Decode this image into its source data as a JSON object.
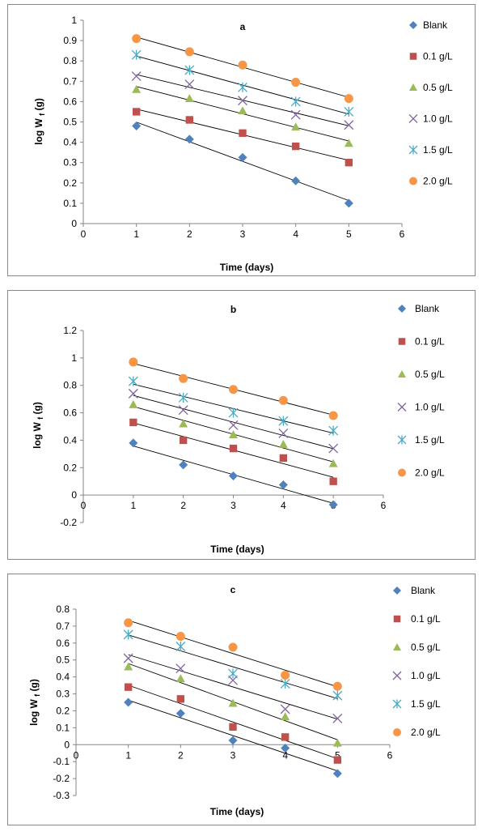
{
  "chart_data": [
    {
      "type": "scatter",
      "title": "a",
      "xlabel": "Time (days)",
      "ylabel": "log W",
      "ylabel_sub": "f",
      "ylabel_suffix": "(g)",
      "xlim": [
        0,
        6
      ],
      "ylim": [
        0,
        1
      ],
      "xticks": [
        0,
        1,
        2,
        3,
        4,
        5,
        6
      ],
      "yticks": [
        0,
        0.1,
        0.2,
        0.3,
        0.4,
        0.5,
        0.6,
        0.7,
        0.8,
        0.9,
        1
      ],
      "ytick_labels": [
        "0",
        "0.1",
        "0.2",
        "0.3",
        "0.4",
        "0.5",
        "0.6",
        "0.7",
        "0.8",
        "0.9",
        "1"
      ],
      "grid": false,
      "legend": "right",
      "x": [
        1,
        2,
        3,
        4,
        5
      ],
      "series": [
        {
          "name": "Blank",
          "marker": "diamond",
          "color": "#4F81BD",
          "values": [
            0.48,
            0.415,
            0.325,
            0.21,
            0.1
          ]
        },
        {
          "name": "0.1 g/L",
          "marker": "square",
          "color": "#C0504D",
          "values": [
            0.55,
            0.51,
            0.445,
            0.38,
            0.3
          ]
        },
        {
          "name": "0.5 g/L",
          "marker": "triangle",
          "color": "#9BBB59",
          "values": [
            0.66,
            0.615,
            0.555,
            0.475,
            0.395
          ]
        },
        {
          "name": "1.0 g/L",
          "marker": "x",
          "color": "#8064A2",
          "values": [
            0.725,
            0.685,
            0.605,
            0.535,
            0.485
          ]
        },
        {
          "name": "1.5 g/L",
          "marker": "star",
          "color": "#4BACC6",
          "values": [
            0.83,
            0.755,
            0.67,
            0.6,
            0.55
          ]
        },
        {
          "name": "2.0 g/L",
          "marker": "circle",
          "color": "#F79646",
          "values": [
            0.91,
            0.845,
            0.78,
            0.695,
            0.615
          ]
        }
      ]
    },
    {
      "type": "scatter",
      "title": "b",
      "xlabel": "Time (days)",
      "ylabel": "log W",
      "ylabel_sub": "f",
      "ylabel_suffix": "(g)",
      "xlim": [
        0,
        6
      ],
      "ylim": [
        -0.2,
        1.2
      ],
      "xticks": [
        0,
        1,
        2,
        3,
        4,
        5,
        6
      ],
      "yticks": [
        -0.2,
        0,
        0.2,
        0.4,
        0.6,
        0.8,
        1,
        1.2
      ],
      "ytick_labels": [
        "-0.2",
        "0",
        "0.2",
        "0.4",
        "0.6",
        "0.8",
        "1",
        "1.2"
      ],
      "grid": false,
      "legend": "right",
      "x": [
        1,
        2,
        3,
        4,
        5
      ],
      "series": [
        {
          "name": "Blank",
          "marker": "diamond",
          "color": "#4F81BD",
          "values": [
            0.38,
            0.22,
            0.14,
            0.075,
            -0.07
          ]
        },
        {
          "name": "0.1 g/L",
          "marker": "square",
          "color": "#C0504D",
          "values": [
            0.53,
            0.4,
            0.34,
            0.27,
            0.1
          ]
        },
        {
          "name": "0.5 g/L",
          "marker": "triangle",
          "color": "#9BBB59",
          "values": [
            0.66,
            0.52,
            0.44,
            0.37,
            0.23
          ]
        },
        {
          "name": "1.0 g/L",
          "marker": "x",
          "color": "#8064A2",
          "values": [
            0.74,
            0.62,
            0.51,
            0.45,
            0.34
          ]
        },
        {
          "name": "1.5 g/L",
          "marker": "star",
          "color": "#4BACC6",
          "values": [
            0.83,
            0.71,
            0.6,
            0.54,
            0.47
          ]
        },
        {
          "name": "2.0 g/L",
          "marker": "circle",
          "color": "#F79646",
          "values": [
            0.97,
            0.85,
            0.77,
            0.69,
            0.58
          ]
        }
      ]
    },
    {
      "type": "scatter",
      "title": "c",
      "xlabel": "Time (days)",
      "ylabel": "log W",
      "ylabel_sub": "f",
      "ylabel_suffix": "(g)",
      "xlim": [
        0,
        6
      ],
      "ylim": [
        -0.3,
        0.8
      ],
      "xticks": [
        0,
        1,
        2,
        3,
        4,
        5,
        6
      ],
      "yticks": [
        -0.3,
        -0.2,
        -0.1,
        0,
        0.1,
        0.2,
        0.3,
        0.4,
        0.5,
        0.6,
        0.7,
        0.8
      ],
      "ytick_labels": [
        "-0.3",
        "-0.2",
        "-0.1",
        "0",
        "0.1",
        "0.2",
        "0.3",
        "0.4",
        "0.5",
        "0.6",
        "0.7",
        "0.8"
      ],
      "grid": false,
      "legend": "right",
      "x": [
        1,
        2,
        3,
        4,
        5
      ],
      "series": [
        {
          "name": "Blank",
          "marker": "diamond",
          "color": "#4F81BD",
          "values": [
            0.25,
            0.185,
            0.025,
            -0.02,
            -0.17
          ]
        },
        {
          "name": "0.1 g/L",
          "marker": "square",
          "color": "#C0504D",
          "values": [
            0.34,
            0.27,
            0.105,
            0.045,
            -0.09
          ]
        },
        {
          "name": "0.5 g/L",
          "marker": "triangle",
          "color": "#9BBB59",
          "values": [
            0.46,
            0.39,
            0.245,
            0.165,
            0.01
          ]
        },
        {
          "name": "1.0 g/L",
          "marker": "x",
          "color": "#8064A2",
          "values": [
            0.51,
            0.45,
            0.38,
            0.21,
            0.155
          ]
        },
        {
          "name": "1.5 g/L",
          "marker": "star",
          "color": "#4BACC6",
          "values": [
            0.65,
            0.58,
            0.42,
            0.36,
            0.29
          ]
        },
        {
          "name": "2.0 g/L",
          "marker": "circle",
          "color": "#F79646",
          "values": [
            0.72,
            0.64,
            0.575,
            0.41,
            0.345
          ]
        }
      ]
    }
  ]
}
